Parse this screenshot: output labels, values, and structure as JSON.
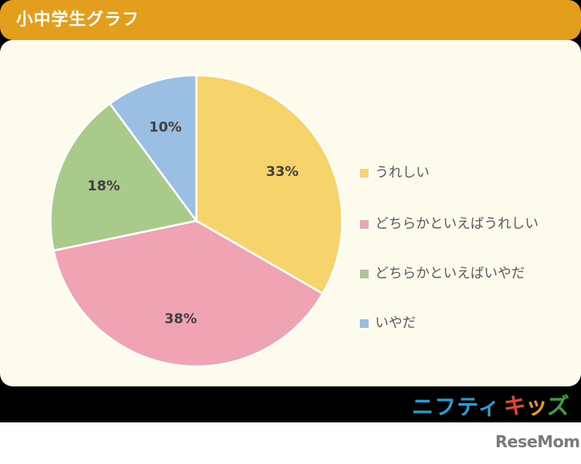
{
  "header": {
    "title": "小中学生グラフ",
    "color": "#e29e1c"
  },
  "chart_data": {
    "type": "pie",
    "title": "小中学生グラフ",
    "categories": [
      "うれしい",
      "どちらかといえばうれしい",
      "どちらかといえばいやだ",
      "いやだ"
    ],
    "values": [
      33,
      38,
      18,
      10
    ],
    "labels": [
      "33%",
      "38%",
      "18%",
      "10%"
    ],
    "colors": [
      "#f7d46b",
      "#efa3b3",
      "#a8cb8c",
      "#9bbfe2"
    ],
    "start_angle": "12 o'clock, clockwise",
    "legend_position": "right"
  },
  "legend": {
    "items": [
      {
        "label": "うれしい",
        "color": "#f7d46b"
      },
      {
        "label": "どちらかといえばうれしい",
        "color": "#efa3b3"
      },
      {
        "label": "どちらかといえばいやだ",
        "color": "#a8cb8c"
      },
      {
        "label": "いやだ",
        "color": "#9bbfe2"
      }
    ]
  },
  "branding": {
    "nifty_part1": "ニフティ",
    "nifty_part2": "キッズ",
    "resemom": "ReseMom"
  }
}
